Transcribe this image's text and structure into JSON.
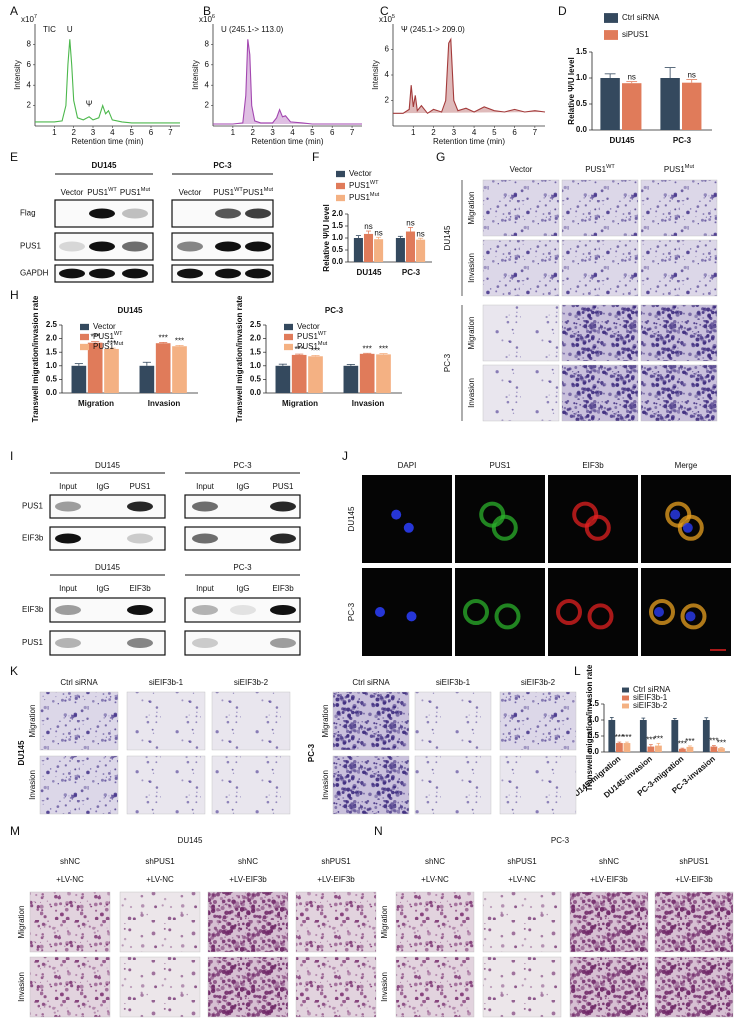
{
  "panel_labels": [
    "A",
    "B",
    "C",
    "D",
    "E",
    "F",
    "G",
    "H",
    "I",
    "J",
    "K",
    "L",
    "M",
    "N"
  ],
  "chart_data": [
    {
      "type": "line",
      "title": "TIC",
      "annotations": [
        "U",
        "Ψ"
      ],
      "scale": {
        "text": "x10",
        "sup": "7"
      },
      "xlabel": "Retention time (min)",
      "ylabel": "Intensity",
      "xlim": [
        0,
        7.5
      ],
      "xticks": [
        1,
        2,
        3,
        4,
        5,
        6,
        7
      ],
      "ylim": [
        0,
        10
      ],
      "yticks": [
        2,
        4,
        6,
        8
      ],
      "color": "#4cb84c",
      "area": false,
      "x": [
        0,
        0.5,
        1,
        1.4,
        1.6,
        1.7,
        1.8,
        1.9,
        2.0,
        2.2,
        2.5,
        2.8,
        3.0,
        3.3,
        3.5,
        3.65,
        3.8,
        4.0,
        4.5,
        5,
        6,
        7,
        7.5
      ],
      "y": [
        0.4,
        0.4,
        0.4,
        0.5,
        2.0,
        6,
        8.5,
        6,
        2.5,
        0.8,
        0.6,
        0.9,
        0.6,
        0.8,
        2.0,
        1.2,
        1.5,
        0.6,
        0.4,
        0.3,
        0.3,
        0.3,
        0.3
      ]
    },
    {
      "type": "line",
      "title": "U (245.1-> 113.0)",
      "scale": {
        "text": "x10",
        "sup": "6"
      },
      "xlabel": "Retention time (min)",
      "ylabel": "Intensity",
      "xlim": [
        0,
        7.5
      ],
      "xticks": [
        1,
        2,
        3,
        4,
        5,
        6,
        7
      ],
      "ylim": [
        0,
        10
      ],
      "yticks": [
        2,
        4,
        6,
        8
      ],
      "color": "#a347b0",
      "area": true,
      "x": [
        0,
        0.5,
        1,
        1.5,
        1.65,
        1.75,
        1.85,
        1.95,
        2.1,
        2.4,
        3.0,
        3.2,
        3.35,
        3.5,
        3.65,
        3.9,
        4.5,
        5,
        6,
        7,
        7.5
      ],
      "y": [
        0.2,
        0.2,
        0.2,
        0.3,
        3,
        8.5,
        7,
        2,
        0.5,
        0.3,
        0.3,
        0.8,
        1.6,
        0.9,
        1.0,
        0.4,
        0.3,
        0.2,
        0.2,
        0.2,
        0.2
      ]
    },
    {
      "type": "line",
      "title": "Ψ (245.1-> 209.0)",
      "scale": {
        "text": "x10",
        "sup": "5"
      },
      "xlabel": "Retention time (min)",
      "ylabel": "Intensity",
      "xlim": [
        0,
        7.5
      ],
      "xticks": [
        1,
        2,
        3,
        4,
        5,
        6,
        7
      ],
      "ylim": [
        0,
        8
      ],
      "yticks": [
        2,
        4,
        6
      ],
      "color": "#a33a3a",
      "area": true,
      "x": [
        0,
        0.5,
        0.8,
        0.9,
        1.0,
        1.1,
        1.2,
        1.4,
        1.7,
        2.0,
        2.4,
        2.6,
        2.75,
        2.85,
        3.0,
        3.2,
        3.6,
        4,
        4.5,
        5,
        5.5,
        6,
        6.5,
        7,
        7.5
      ],
      "y": [
        1,
        1,
        1.3,
        3.2,
        1.5,
        2.4,
        1.2,
        1.6,
        1.0,
        1.3,
        1.1,
        2.0,
        6.5,
        6.8,
        2.0,
        1.2,
        1.4,
        1.1,
        1.5,
        1.2,
        1.1,
        1.3,
        1.1,
        1.2,
        1.1
      ]
    },
    {
      "type": "bar",
      "ylabel": "Relative Ψ/U level",
      "categories": [
        "DU145",
        "PC-3"
      ],
      "series": [
        {
          "name": "Ctrl siRNA",
          "color": "#34495e",
          "values": [
            1.0,
            1.0
          ],
          "errors": [
            0.08,
            0.2
          ]
        },
        {
          "name": "siPUS1",
          "color": "#e07b5a",
          "values": [
            0.9,
            0.91
          ],
          "errors": [
            0.03,
            0.06
          ],
          "sig": [
            "ns",
            "ns"
          ]
        }
      ],
      "ylim": [
        0,
        1.5
      ],
      "yticks": [
        {
          "value": 0,
          "label": "0.0"
        },
        {
          "value": 0.5,
          "label": "0.5"
        },
        {
          "value": 1,
          "label": "1.0"
        },
        {
          "value": 1.5,
          "label": "1.5"
        }
      ]
    },
    {
      "type": "bar",
      "ylabel": "Relative Ψ/U level",
      "categories": [
        "DU145",
        "PC-3"
      ],
      "series": [
        {
          "name": "Vector",
          "color": "#34495e",
          "values": [
            1.0,
            1.0
          ],
          "errors": [
            0.1,
            0.07
          ]
        },
        {
          "name": "PUS1",
          "name_sup": "WT",
          "color": "#e07b5a",
          "values": [
            1.17,
            1.27
          ],
          "errors": [
            0.12,
            0.17
          ],
          "sig": [
            "ns",
            "ns"
          ]
        },
        {
          "name": "PUS1",
          "name_sup": "Mut",
          "color": "#f4b183",
          "values": [
            0.95,
            0.93
          ],
          "errors": [
            0.08,
            0.06
          ],
          "sig": [
            "ns",
            "ns"
          ]
        }
      ],
      "ylim": [
        0,
        2
      ],
      "yticks": [
        {
          "value": 0,
          "label": "0.0"
        },
        {
          "value": 0.5,
          "label": "0.5"
        },
        {
          "value": 1,
          "label": "1.0"
        },
        {
          "value": 1.5,
          "label": "1.5"
        },
        {
          "value": 2,
          "label": "2.0"
        }
      ]
    },
    {
      "type": "bar",
      "title": "DU145",
      "ylabel": "Transwell migration/invasion rate",
      "categories": [
        "Migration",
        "Invasion"
      ],
      "series": [
        {
          "name": "Vector",
          "color": "#34495e",
          "values": [
            1.0,
            1.0
          ],
          "errors": [
            0.08,
            0.13
          ]
        },
        {
          "name": "PUS1",
          "name_sup": "WT",
          "color": "#e07b5a",
          "values": [
            1.85,
            1.83
          ],
          "errors": [
            0.04,
            0.03
          ],
          "sig": [
            "***",
            "***"
          ]
        },
        {
          "name": "PUS1",
          "name_sup": "Mut",
          "color": "#f4b183",
          "values": [
            1.62,
            1.72
          ],
          "errors": [
            0.03,
            0.03
          ],
          "sig": [
            "***",
            "***"
          ]
        }
      ],
      "ylim": [
        0,
        2.5
      ],
      "yticks": [
        {
          "value": 0,
          "label": "0.0"
        },
        {
          "value": 0.5,
          "label": "0.5"
        },
        {
          "value": 1,
          "label": "1.0"
        },
        {
          "value": 1.5,
          "label": "1.5"
        },
        {
          "value": 2,
          "label": "2.0"
        },
        {
          "value": 2.5,
          "label": "2.5"
        }
      ]
    },
    {
      "type": "bar",
      "title": "PC-3",
      "ylabel": "Transwell migration/invasion rate",
      "categories": [
        "Migration",
        "Invasion"
      ],
      "series": [
        {
          "name": "Vector",
          "color": "#34495e",
          "values": [
            1.0,
            1.0
          ],
          "errors": [
            0.06,
            0.05
          ]
        },
        {
          "name": "PUS1",
          "name_sup": "WT",
          "color": "#e07b5a",
          "values": [
            1.4,
            1.44
          ],
          "errors": [
            0.03,
            0.02
          ],
          "sig": [
            "***",
            "***"
          ]
        },
        {
          "name": "PUS1",
          "name_sup": "Mut",
          "color": "#f4b183",
          "values": [
            1.35,
            1.42
          ],
          "errors": [
            0.03,
            0.03
          ],
          "sig": [
            "***",
            "***"
          ]
        }
      ],
      "ylim": [
        0,
        2.5
      ],
      "yticks": [
        {
          "value": 0,
          "label": "0.0"
        },
        {
          "value": 0.5,
          "label": "0.5"
        },
        {
          "value": 1,
          "label": "1.0"
        },
        {
          "value": 1.5,
          "label": "1.5"
        },
        {
          "value": 2,
          "label": "2.0"
        },
        {
          "value": 2.5,
          "label": "2.5"
        }
      ]
    },
    {
      "type": "bar",
      "ylabel": "Transwell migration/invasion rate",
      "categories": [
        "DU145-migration",
        "DU145-invasion",
        "PC-3-migration",
        "PC-3-invasion"
      ],
      "series": [
        {
          "name": "Ctrl siRNA",
          "color": "#34495e",
          "values": [
            1,
            1,
            1,
            1
          ],
          "errors": [
            0.08,
            0.06,
            0.05,
            0.07
          ]
        },
        {
          "name": "siEIF3b-1",
          "color": "#e07b5a",
          "values": [
            0.28,
            0.17,
            0.1,
            0.17
          ],
          "errors": [
            0.03,
            0.06,
            0.02,
            0.03
          ],
          "sig": [
            "***",
            "***",
            "***",
            "***"
          ]
        },
        {
          "name": "siEIF3b-2",
          "color": "#f4b183",
          "values": [
            0.28,
            0.2,
            0.16,
            0.12
          ],
          "errors": [
            0.03,
            0.07,
            0.03,
            0.02
          ],
          "sig": [
            "***",
            "***",
            "***",
            "***"
          ]
        }
      ],
      "ylim": [
        0,
        1.5
      ],
      "yticks": [
        {
          "value": 0,
          "label": "0.0"
        },
        {
          "value": 0.5,
          "label": "0.5"
        },
        {
          "value": 1,
          "label": "1.0"
        },
        {
          "value": 1.5,
          "label": "1.5"
        }
      ]
    }
  ],
  "blots_E": {
    "groups": [
      {
        "title": "DU145",
        "lanes": [
          "Vector",
          {
            "text": "PUS1",
            "sup": "WT"
          },
          {
            "text": "PUS1",
            "sup": "Mut"
          }
        ]
      },
      {
        "title": "PC-3",
        "lanes": [
          "Vector",
          {
            "text": "PUS1",
            "sup": "WT"
          },
          {
            "text": "PUS1",
            "sup": "Mut"
          }
        ]
      }
    ],
    "rows": [
      "Flag",
      "PUS1",
      "GAPDH"
    ]
  },
  "transwell_G": {
    "columns": [
      "Vector",
      {
        "text": "PUS1",
        "sup": "WT"
      },
      {
        "text": "PUS1",
        "sup": "Mut"
      }
    ],
    "groups": [
      {
        "title": "DU145",
        "rows": [
          "Migration",
          "Invasion"
        ]
      },
      {
        "title": "PC-3",
        "rows": [
          "Migration",
          "Invasion"
        ]
      }
    ]
  },
  "coip_I": [
    {
      "groups": [
        {
          "title": "DU145",
          "lanes": [
            "Input",
            "IgG",
            "PUS1"
          ]
        },
        {
          "title": "PC-3",
          "lanes": [
            "Input",
            "IgG",
            "PUS1"
          ]
        }
      ],
      "rows": [
        "PUS1",
        "EIF3b"
      ]
    },
    {
      "groups": [
        {
          "title": "DU145",
          "lanes": [
            "Input",
            "IgG",
            "EIF3b"
          ]
        },
        {
          "title": "PC-3",
          "lanes": [
            "Input",
            "IgG",
            "EIF3b"
          ]
        }
      ],
      "rows": [
        "EIF3b",
        "PUS1"
      ]
    }
  ],
  "if_J": {
    "columns": [
      "DAPI",
      "PUS1",
      "EIF3b",
      "Merge"
    ],
    "rows": [
      "DU145",
      "PC-3"
    ]
  },
  "transwell_K": [
    {
      "title": "DU145",
      "columns": [
        "Ctrl siRNA",
        "siEIF3b-1",
        "siEIF3b-2"
      ],
      "rows": [
        "Migration",
        "Invasion"
      ]
    },
    {
      "title": "PC-3",
      "columns": [
        "Ctrl siRNA",
        "siEIF3b-1",
        "siEIF3b-2"
      ],
      "rows": [
        "Migration",
        "Invasion"
      ]
    }
  ],
  "transwell_MN": [
    {
      "title": "DU145",
      "columns": [
        [
          "shNC",
          "+LV-NC"
        ],
        [
          "shPUS1",
          "+LV-NC"
        ],
        [
          "shNC",
          "+LV-EIF3b"
        ],
        [
          "shPUS1",
          "+LV-EIF3b"
        ]
      ],
      "rows": [
        "Migration",
        "Invasion"
      ]
    },
    {
      "title": "PC-3",
      "columns": [
        [
          "shNC",
          "+LV-NC"
        ],
        [
          "shPUS1",
          "+LV-NC"
        ],
        [
          "shNC",
          "+LV-EIF3b"
        ],
        [
          "shPUS1",
          "+LV-EIF3b"
        ]
      ],
      "rows": [
        "Migration",
        "Invasion"
      ]
    }
  ]
}
